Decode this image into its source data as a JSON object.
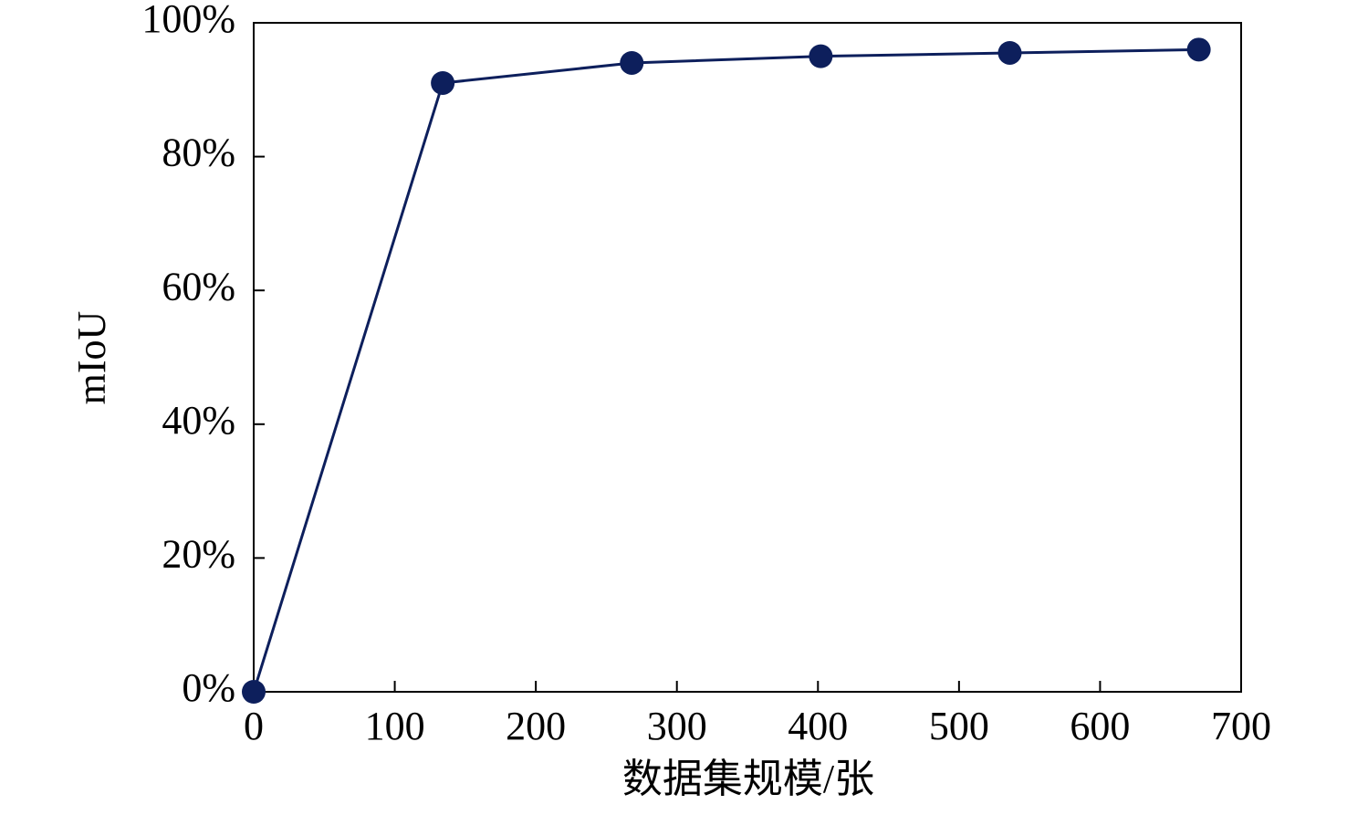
{
  "chart_data": {
    "type": "line",
    "x_label": "数据集规模/张",
    "y_label": "mIoU",
    "series": [
      {
        "name": "mIoU",
        "color": "#0d1f5c",
        "x": [
          0,
          134,
          268,
          402,
          536,
          670
        ],
        "values": [
          0,
          91,
          94,
          95,
          95.5,
          96
        ]
      }
    ],
    "xlim": [
      0,
      700
    ],
    "xticks": [
      0,
      100,
      200,
      300,
      400,
      500,
      600,
      700
    ],
    "ylim": [
      0,
      100
    ],
    "yticks": [
      {
        "value": 0,
        "label": "0%"
      },
      {
        "value": 20,
        "label": "20%"
      },
      {
        "value": 40,
        "label": "40%"
      },
      {
        "value": 60,
        "label": "60%"
      },
      {
        "value": 80,
        "label": "80%"
      },
      {
        "value": 100,
        "label": "100%"
      }
    ]
  }
}
